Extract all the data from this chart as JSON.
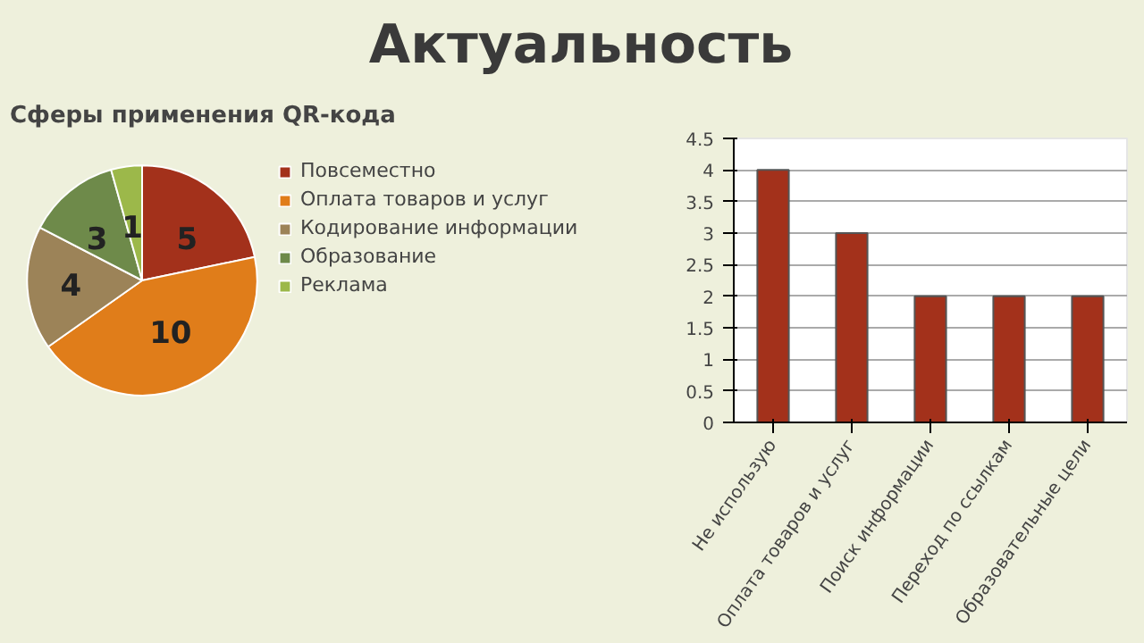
{
  "chart_data": [
    {
      "type": "pie",
      "title": "Актуальность",
      "subtitle": "Сферы применения QR-кода",
      "categories": [
        "Повсеместно",
        "Оплата товаров и услуг",
        "Кодирование информации",
        "Образование",
        "Реклама"
      ],
      "values": [
        5,
        10,
        4,
        3,
        1
      ],
      "colors": [
        "#a3311b",
        "#e07d1a",
        "#9c8358",
        "#6e8a4a",
        "#9cb84a"
      ],
      "data_labels": true,
      "legend": "right"
    },
    {
      "type": "bar",
      "categories": [
        "Не использую",
        "Оплата товаров и услуг",
        "Поиск информации",
        "Переход по ссылкам",
        "Образовательные цели"
      ],
      "values": [
        4,
        3,
        2,
        2,
        2
      ],
      "color": "#a3311b",
      "ylim": [
        0,
        4.5
      ],
      "yticks": [
        0,
        0.5,
        1,
        1.5,
        2,
        2.5,
        3,
        3.5,
        4,
        4.5
      ],
      "grid": "y"
    }
  ]
}
